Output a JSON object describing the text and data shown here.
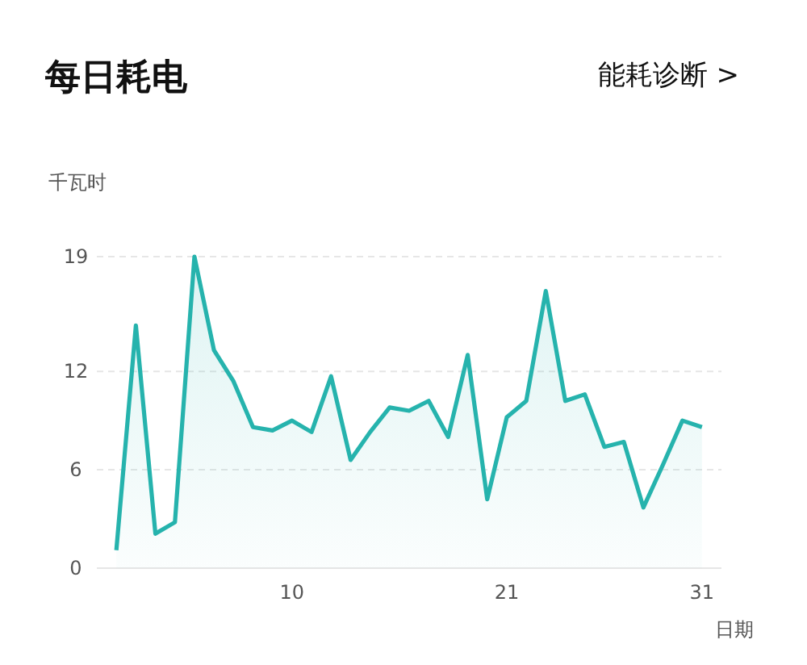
{
  "chart_data": {
    "type": "area",
    "title": "每日耗电",
    "annotations": [
      "能耗诊断 >"
    ],
    "ylabel": "千瓦时",
    "xlabel": "日期",
    "x": [
      1,
      2,
      3,
      4,
      5,
      6,
      7,
      8,
      9,
      10,
      11,
      12,
      13,
      14,
      15,
      16,
      17,
      18,
      19,
      20,
      21,
      22,
      23,
      24,
      25,
      26,
      27,
      28,
      29,
      30,
      31
    ],
    "series": [
      {
        "color": "#26b3ad",
        "values": [
          1.1,
          14.8,
          2.1,
          2.8,
          19.0,
          13.3,
          11.4,
          8.6,
          8.4,
          9.0,
          8.3,
          11.7,
          6.6,
          8.3,
          9.8,
          9.6,
          10.2,
          8.0,
          13.0,
          4.2,
          9.2,
          10.2,
          16.9,
          10.2,
          10.6,
          7.4,
          7.7,
          3.7,
          6.3,
          9.0,
          8.6
        ]
      }
    ],
    "xlim": [
      0,
      32
    ],
    "ylim": [
      0,
      19
    ],
    "xticks": [
      10,
      21,
      31
    ],
    "yticks": [
      0,
      6,
      12,
      19
    ],
    "grid": "y",
    "marker": "none",
    "line_style": "solid"
  }
}
